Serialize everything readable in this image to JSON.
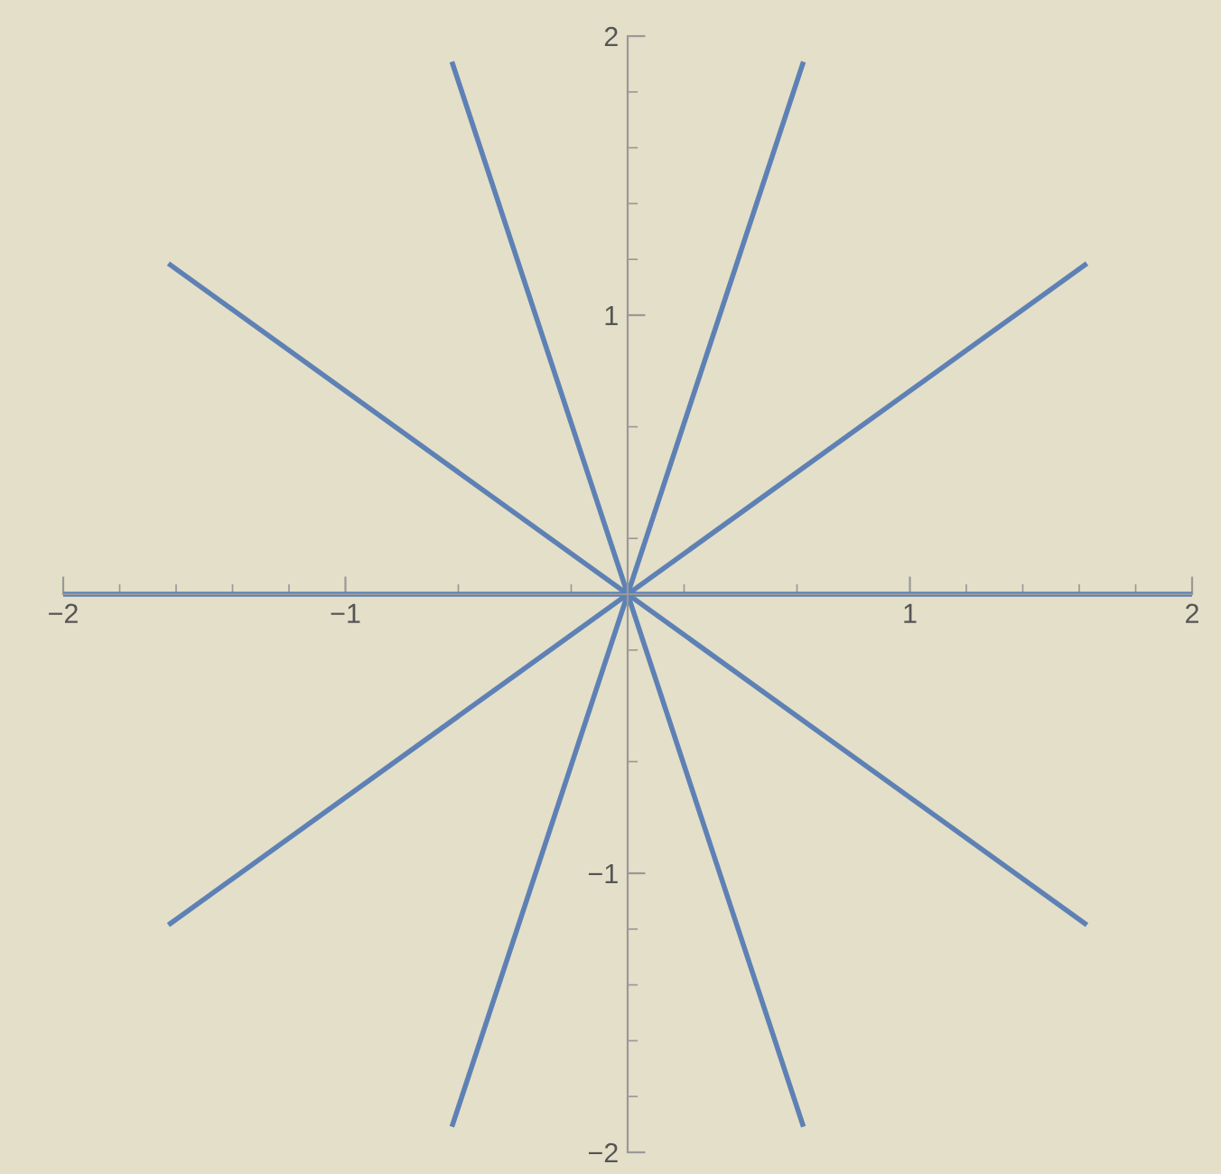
{
  "chart_data": {
    "type": "line",
    "xlim": [
      -2,
      2
    ],
    "ylim": [
      -2,
      2
    ],
    "xticks": [
      {
        "value": -2,
        "label": "−2"
      },
      {
        "value": -1,
        "label": "−1"
      },
      1,
      2
    ],
    "yticks": [
      {
        "value": -2,
        "label": "−2"
      },
      {
        "value": -1,
        "label": "−1"
      },
      1,
      2
    ],
    "grid": false,
    "legend": false,
    "marker": "none",
    "line_style": "solid",
    "series": [
      {
        "color": "#5e81b5",
        "x": [
          -2,
          2
        ],
        "values": [
          0,
          0
        ]
      },
      {
        "color": "#5e81b5",
        "x": [
          -1.62,
          1.62
        ],
        "values": [
          -1.18,
          1.18
        ]
      },
      {
        "color": "#5e81b5",
        "x": [
          -0.62,
          0.62
        ],
        "values": [
          -1.9,
          1.9
        ]
      },
      {
        "color": "#5e81b5",
        "x": [
          -0.62,
          0.62
        ],
        "values": [
          1.9,
          -1.9
        ]
      },
      {
        "color": "#5e81b5",
        "x": [
          -1.62,
          1.62
        ],
        "values": [
          1.18,
          -1.18
        ]
      }
    ]
  }
}
